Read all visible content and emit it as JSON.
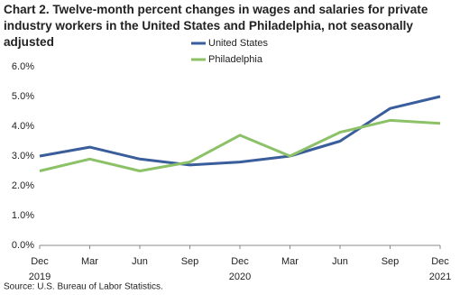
{
  "chart_data": {
    "type": "line",
    "title": "Chart 2. Twelve-month percent changes in wages and salaries for private industry workers in the United States and Philadelphia, not seasonally adjusted",
    "categories": [
      "Dec",
      "Mar",
      "Jun",
      "Sep",
      "Dec",
      "Mar",
      "Jun",
      "Sep",
      "Dec"
    ],
    "category_years": [
      "2019",
      null,
      null,
      null,
      "2020",
      null,
      null,
      null,
      "2021"
    ],
    "series": [
      {
        "name": "United States",
        "color": "#3a5d9c",
        "values": [
          3.0,
          3.3,
          2.9,
          2.7,
          2.8,
          3.0,
          3.5,
          4.6,
          5.0
        ]
      },
      {
        "name": "Philadelphia",
        "color": "#8cc168",
        "values": [
          2.5,
          2.9,
          2.5,
          2.8,
          3.7,
          3.0,
          3.8,
          4.2,
          4.1
        ]
      }
    ],
    "ylim": [
      0,
      6
    ],
    "yticks": [
      {
        "value": 0,
        "label": "0.0%"
      },
      {
        "value": 1,
        "label": "1.0%"
      },
      {
        "value": 2,
        "label": "2.0%"
      },
      {
        "value": 3,
        "label": "3.0%"
      },
      {
        "value": 4,
        "label": "4.0%"
      },
      {
        "value": 5,
        "label": "5.0%"
      },
      {
        "value": 6,
        "label": "6.0%"
      }
    ],
    "grid": false,
    "source": "Source: U.S. Bureau of Labor Statistics."
  }
}
